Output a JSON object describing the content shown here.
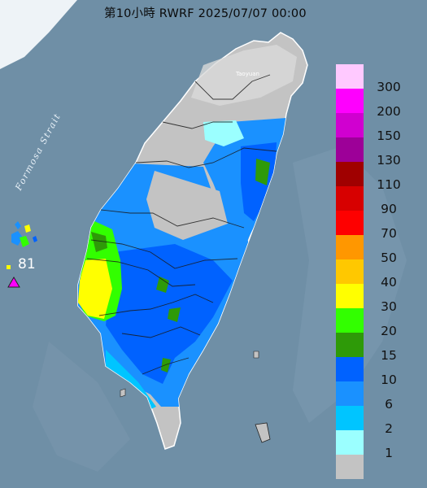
{
  "header": {
    "title": "第10小時  RWRF 2025/07/07 00:00"
  },
  "map_labels": {
    "strait": "Formosa Strait",
    "city": "Taoyuan",
    "station_value": "81"
  },
  "legend": {
    "unit_labels": [
      "300",
      "200",
      "150",
      "130",
      "110",
      "90",
      "70",
      "50",
      "40",
      "30",
      "20",
      "15",
      "10",
      "6",
      "2",
      "1"
    ],
    "colors": [
      "#ffc9ff",
      "#fe00fe",
      "#d000d0",
      "#9d0098",
      "#a00000",
      "#d70000",
      "#fe0000",
      "#ff9700",
      "#ffc800",
      "#ffff00",
      "#32ff00",
      "#2e9a08",
      "#0062ff",
      "#1a91ff",
      "#00c5ff",
      "#9bffff",
      "#c3c3c3"
    ]
  },
  "colors": {
    "sea": "#6f8fa6",
    "land_bg": "#c3c3c3"
  }
}
